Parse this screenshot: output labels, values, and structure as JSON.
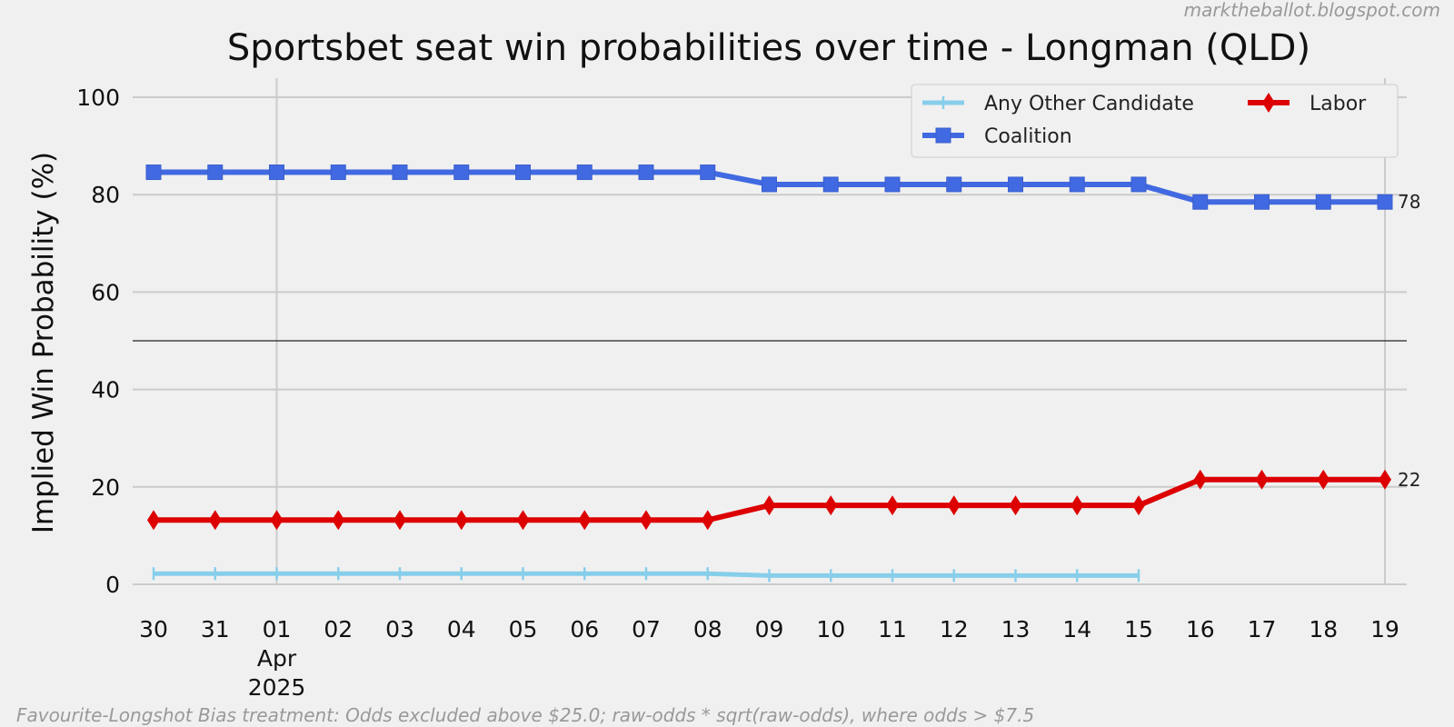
{
  "credit": "marktheballot.blogspot.com",
  "footnote": "Favourite-Longshot Bias treatment: Odds excluded above $25.0; raw-odds * sqrt(raw-odds), where odds > $7.5",
  "chart_data": {
    "type": "line",
    "title": "Sportsbet seat win probabilities over time - Longman (QLD)",
    "xlabel": "",
    "ylabel": "Implied Win Probability (%)",
    "ylim": [
      0,
      100
    ],
    "yticks": [
      0,
      20,
      40,
      60,
      80,
      100
    ],
    "reference_line_y": 50,
    "grid": true,
    "legend_position": "top-right",
    "x": [
      "2025-03-30",
      "2025-03-31",
      "2025-04-01",
      "2025-04-02",
      "2025-04-03",
      "2025-04-04",
      "2025-04-05",
      "2025-04-06",
      "2025-04-07",
      "2025-04-08",
      "2025-04-09",
      "2025-04-10",
      "2025-04-11",
      "2025-04-12",
      "2025-04-13",
      "2025-04-14",
      "2025-04-15",
      "2025-04-16",
      "2025-04-17",
      "2025-04-18",
      "2025-04-19"
    ],
    "x_tick_labels": [
      "30",
      "31",
      "01",
      "02",
      "03",
      "04",
      "05",
      "06",
      "07",
      "08",
      "09",
      "10",
      "11",
      "12",
      "13",
      "14",
      "15",
      "16",
      "17",
      "18",
      "19"
    ],
    "x_month_label": {
      "index": 2,
      "month": "Apr",
      "year": "2025"
    },
    "series": [
      {
        "name": "Any Other Candidate",
        "color": "#87ceeb",
        "marker": "plus",
        "values": [
          2.2,
          2.2,
          2.2,
          2.2,
          2.2,
          2.2,
          2.2,
          2.2,
          2.2,
          2.2,
          1.8,
          1.8,
          1.8,
          1.8,
          1.8,
          1.8,
          1.8,
          null,
          null,
          null,
          null
        ]
      },
      {
        "name": "Coalition",
        "color": "#4169e1",
        "marker": "square",
        "values": [
          84.6,
          84.6,
          84.6,
          84.6,
          84.6,
          84.6,
          84.6,
          84.6,
          84.6,
          84.6,
          82.1,
          82.1,
          82.1,
          82.1,
          82.1,
          82.1,
          82.1,
          78.5,
          78.5,
          78.5,
          78.5
        ],
        "end_label": "78"
      },
      {
        "name": "Labor",
        "color": "#dd0000",
        "marker": "diamond",
        "values": [
          13.2,
          13.2,
          13.2,
          13.2,
          13.2,
          13.2,
          13.2,
          13.2,
          13.2,
          13.2,
          16.2,
          16.2,
          16.2,
          16.2,
          16.2,
          16.2,
          16.2,
          21.5,
          21.5,
          21.5,
          21.5
        ],
        "end_label": "22"
      }
    ]
  }
}
